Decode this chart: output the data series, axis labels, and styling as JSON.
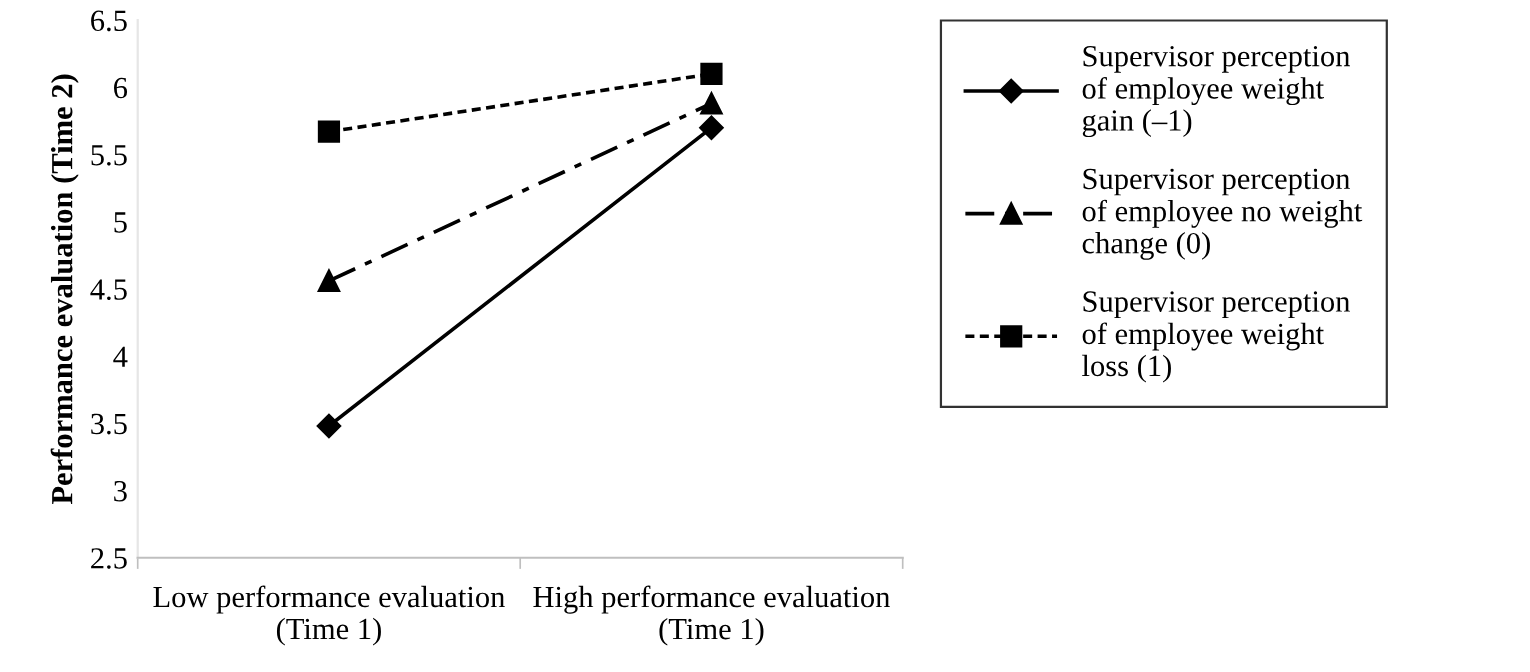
{
  "chart_data": {
    "type": "line",
    "ylabel": "Performance evaluation (Time 2)",
    "categories": [
      "Low performance evaluation (Time 1)",
      "High performance evaluation (Time 1)"
    ],
    "series": [
      {
        "name": "Supervisor perception of employee weight gain (–1)",
        "color": "#000000",
        "values": [
          3.48,
          5.7
        ],
        "marker": "diamond",
        "line_style": "solid"
      },
      {
        "name": "Supervisor perception of employee no weight change (0)",
        "color": "#000000",
        "values": [
          4.56,
          5.88
        ],
        "marker": "triangle",
        "line_style": "dashdot"
      },
      {
        "name": "Supervisor perception of employee weight loss (1)",
        "color": "#000000",
        "values": [
          5.67,
          6.1
        ],
        "marker": "square",
        "line_style": "dotted"
      }
    ],
    "ylim": [
      2.5,
      6.5
    ],
    "yticks": [
      2.5,
      3,
      3.5,
      4,
      4.5,
      5,
      5.5,
      6,
      6.5
    ],
    "grid": false,
    "legend": "right"
  }
}
